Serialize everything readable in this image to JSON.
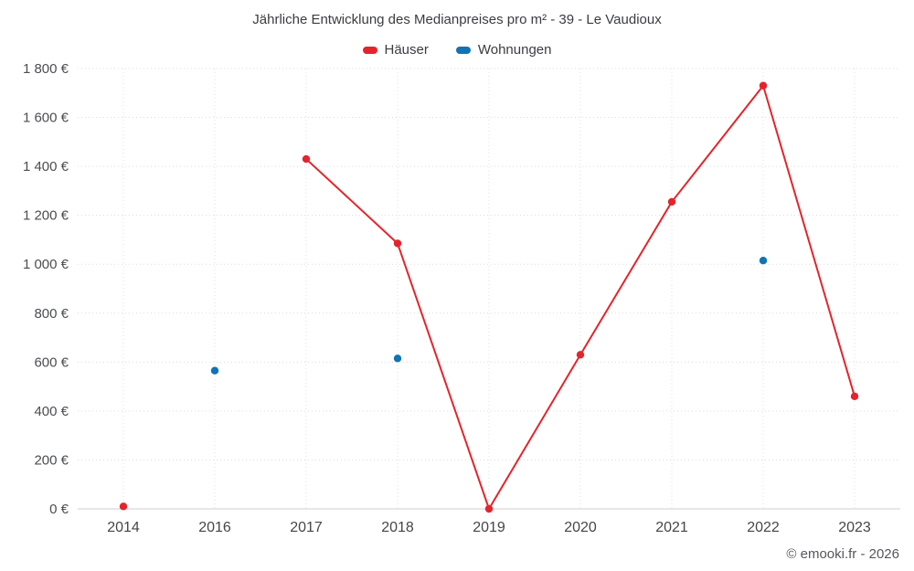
{
  "chart_data": {
    "type": "line",
    "title": "Jährliche Entwicklung des Medianpreises pro m² - 39 - Le Vaudioux",
    "categories": [
      "2014",
      "2016",
      "2017",
      "2018",
      "2019",
      "2020",
      "2021",
      "2022",
      "2023"
    ],
    "series": [
      {
        "name": "Häuser",
        "color": "#e4242b",
        "values": [
          10,
          null,
          1430,
          1085,
          0,
          630,
          1255,
          1730,
          460
        ]
      },
      {
        "name": "Wohnungen",
        "color": "#1173b3",
        "values": [
          null,
          565,
          null,
          615,
          null,
          null,
          null,
          1015,
          null
        ]
      }
    ],
    "ylim": [
      0,
      1800
    ],
    "ytick_step": 200,
    "y_suffix": "€",
    "grid": true,
    "legend_position": "top"
  },
  "footer": {
    "text": "© emooki.fr - 2026"
  }
}
